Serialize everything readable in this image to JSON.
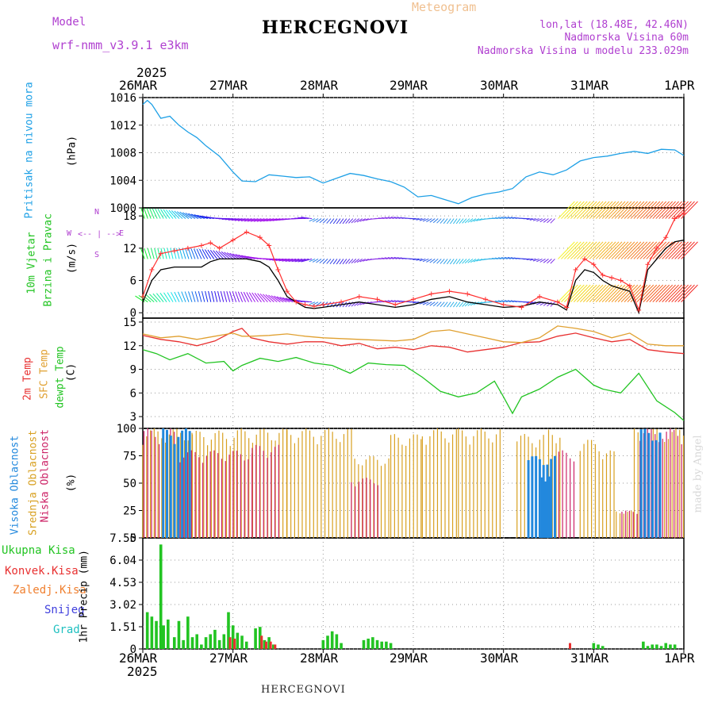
{
  "header": {
    "model_label": "Model",
    "model_name": "wrf-nmm_v3.9.1  e3km",
    "title": "HERCEGNOVI",
    "subtitle": "Meteogram",
    "lonlat": "lon,lat (18.48E, 42.46N)",
    "elevation": "Nadmorska Visina 60m",
    "model_elevation": "Nadmorska Visina u modelu 233.029m",
    "year_top": "2025",
    "year_bottom": "2025",
    "footer_title": "HERCEGNOVI",
    "credit": "made by Angel"
  },
  "colors": {
    "pressure": "#1ea0e6",
    "wind_speed": "#000000",
    "wind_gust": "#ff3030",
    "temp_2m": "#e83030",
    "temp_sfc": "#e0a030",
    "dewpt": "#22c422",
    "cloud_high": "#2288dd",
    "cloud_mid": "#d8a020",
    "cloud_low": "#cc2266",
    "precip_total": "#22c422",
    "precip_conv": "#e83030",
    "frozen": "#f08030",
    "snow": "#4040dd",
    "hail": "#20c0c0",
    "axis_label_purple": "#b040d0"
  },
  "axes": {
    "dates": [
      "26MAR",
      "27MAR",
      "28MAR",
      "29MAR",
      "30MAR",
      "31MAR",
      "1APR"
    ],
    "panel_labels": {
      "pressure": [
        "Pritisak na nivou mora",
        "(hPa)"
      ],
      "wind": [
        "10m Vjetar",
        "Brzina i Pravac",
        "(m/s)"
      ],
      "wind_compass": [
        "N",
        "W",
        "E",
        "S"
      ],
      "temp": [
        "2m Temp",
        "SFC Temp",
        "dewpt Temp",
        "(C)"
      ],
      "cloud": [
        "Visoka Oblacnost",
        "Srednja Oblacnost",
        "Niska Oblacnost",
        "(%)"
      ],
      "precip": [
        "Ukupna Kisa",
        "Konvek.Kisa",
        "Zaledj.Kisa",
        "Snijeg",
        "Grad",
        "1hr Precip (mm)"
      ]
    }
  },
  "chart_data": [
    {
      "type": "line",
      "title": "Pritisak na nivou mora",
      "ylabel": "(hPa)",
      "x_days": [
        0,
        0.05,
        0.1,
        0.2,
        0.3,
        0.4,
        0.5,
        0.6,
        0.7,
        0.85,
        1.0,
        1.1,
        1.25,
        1.4,
        1.55,
        1.7,
        1.85,
        2.0,
        2.15,
        2.3,
        2.45,
        2.6,
        2.75,
        2.9,
        3.05,
        3.2,
        3.35,
        3.5,
        3.65,
        3.8,
        3.95,
        4.1,
        4.25,
        4.4,
        4.55,
        4.7,
        4.85,
        5.0,
        5.15,
        5.3,
        5.45,
        5.6,
        5.75,
        5.9,
        6.0
      ],
      "values": [
        1015.0,
        1015.6,
        1015.0,
        1013.0,
        1013.3,
        1012.0,
        1011.0,
        1010.2,
        1009.0,
        1007.5,
        1005.2,
        1003.9,
        1003.8,
        1004.8,
        1004.6,
        1004.4,
        1004.5,
        1003.6,
        1004.3,
        1005.0,
        1004.7,
        1004.2,
        1003.8,
        1003.0,
        1001.6,
        1001.8,
        1001.2,
        1000.6,
        1001.5,
        1002.0,
        1002.3,
        1002.8,
        1004.5,
        1005.2,
        1004.8,
        1005.5,
        1006.8,
        1007.3,
        1007.5,
        1007.9,
        1008.2,
        1007.9,
        1008.5,
        1008.4,
        1007.6
      ],
      "ylim": [
        1000,
        1016
      ],
      "yticks": [
        1000,
        1004,
        1008,
        1012,
        1016
      ]
    },
    {
      "type": "line",
      "title": "10m Vjetar Brzina i Pravac",
      "ylabel": "(m/s)",
      "series": [
        {
          "name": "speed",
          "x_days": [
            0,
            0.1,
            0.2,
            0.35,
            0.5,
            0.65,
            0.75,
            0.85,
            1.0,
            1.15,
            1.3,
            1.4,
            1.5,
            1.6,
            1.7,
            1.8,
            1.9,
            2.0,
            2.2,
            2.4,
            2.6,
            2.8,
            3.0,
            3.2,
            3.4,
            3.6,
            3.8,
            4.0,
            4.2,
            4.4,
            4.6,
            4.7,
            4.8,
            4.9,
            5.0,
            5.1,
            5.2,
            5.3,
            5.4,
            5.5,
            5.6,
            5.7,
            5.8,
            5.9,
            6.0
          ],
          "values": [
            2,
            6,
            8,
            8.5,
            8.5,
            8.5,
            9.5,
            10,
            10,
            10,
            9.5,
            8.5,
            6,
            3,
            2,
            1,
            0.8,
            1,
            1.5,
            2,
            1.5,
            1,
            1.5,
            2.5,
            3,
            2,
            1.5,
            1,
            1.2,
            2,
            1.5,
            0.5,
            6,
            8,
            7.5,
            6,
            5,
            4.5,
            4,
            0,
            8,
            10,
            12,
            13.2,
            13.5
          ]
        },
        {
          "name": "gust",
          "x_days": [
            0,
            0.1,
            0.2,
            0.35,
            0.5,
            0.65,
            0.75,
            0.85,
            1.0,
            1.15,
            1.3,
            1.4,
            1.5,
            1.6,
            1.7,
            1.8,
            1.9,
            2.0,
            2.2,
            2.4,
            2.6,
            2.8,
            3.0,
            3.2,
            3.4,
            3.6,
            3.8,
            4.0,
            4.2,
            4.4,
            4.6,
            4.7,
            4.8,
            4.9,
            5.0,
            5.1,
            5.2,
            5.3,
            5.4,
            5.5,
            5.6,
            5.7,
            5.8,
            5.9,
            6.0
          ],
          "values": [
            3,
            8,
            11,
            11.5,
            12,
            12.5,
            13,
            12,
            13.5,
            15,
            14,
            12.5,
            8,
            4,
            2,
            1.5,
            1.2,
            1.5,
            2,
            3,
            2.5,
            1.5,
            2.5,
            3.5,
            4,
            3.5,
            2.5,
            1.5,
            1,
            3,
            2,
            1,
            8,
            10,
            9,
            7,
            6.5,
            6,
            5,
            0.5,
            9,
            12,
            14,
            17.5,
            18.5
          ]
        }
      ],
      "ylim": [
        -1,
        19.5
      ],
      "yticks": [
        0,
        6,
        12,
        18
      ]
    },
    {
      "type": "line",
      "title": "2m Temp / SFC Temp / dewpt Temp",
      "ylabel": "(C)",
      "series": [
        {
          "name": "2m Temp",
          "x_days": [
            0,
            0.2,
            0.4,
            0.6,
            0.8,
            1.0,
            1.1,
            1.2,
            1.4,
            1.6,
            1.8,
            2.0,
            2.2,
            2.4,
            2.6,
            2.8,
            3.0,
            3.2,
            3.4,
            3.6,
            3.8,
            4.0,
            4.2,
            4.4,
            4.6,
            4.8,
            5.0,
            5.2,
            5.4,
            5.6,
            5.8,
            6.0
          ],
          "values": [
            13.3,
            12.8,
            12.5,
            12.0,
            12.6,
            13.8,
            14.2,
            13.0,
            12.5,
            12.2,
            12.5,
            12.5,
            12.0,
            12.3,
            11.6,
            11.8,
            11.5,
            12.0,
            11.8,
            11.2,
            11.5,
            11.8,
            12.4,
            12.5,
            13.2,
            13.6,
            13.0,
            12.5,
            12.8,
            11.5,
            11.2,
            11.0
          ]
        },
        {
          "name": "SFC Temp",
          "x_days": [
            0,
            0.2,
            0.4,
            0.6,
            0.8,
            1.0,
            1.1,
            1.2,
            1.4,
            1.6,
            1.8,
            2.0,
            2.2,
            2.4,
            2.6,
            2.8,
            3.0,
            3.2,
            3.4,
            3.6,
            3.8,
            4.0,
            4.2,
            4.4,
            4.6,
            4.8,
            5.0,
            5.2,
            5.4,
            5.6,
            5.8,
            6.0
          ],
          "values": [
            13.5,
            13.0,
            13.2,
            12.8,
            13.2,
            13.6,
            13.2,
            13.2,
            13.3,
            13.5,
            13.2,
            13.0,
            12.9,
            12.8,
            12.7,
            12.6,
            12.8,
            13.8,
            14.0,
            13.5,
            13.0,
            12.5,
            12.4,
            13.0,
            14.5,
            14.2,
            13.8,
            13.0,
            13.6,
            12.2,
            12.0,
            12.0
          ]
        },
        {
          "name": "dewpt Temp",
          "x_days": [
            0,
            0.15,
            0.3,
            0.5,
            0.7,
            0.9,
            1.0,
            1.1,
            1.3,
            1.5,
            1.7,
            1.9,
            2.1,
            2.3,
            2.5,
            2.7,
            2.9,
            3.1,
            3.3,
            3.5,
            3.7,
            3.9,
            4.0,
            4.1,
            4.2,
            4.4,
            4.6,
            4.8,
            5.0,
            5.1,
            5.3,
            5.5,
            5.7,
            5.9,
            6.0
          ],
          "values": [
            11.5,
            11.0,
            10.2,
            11.0,
            9.8,
            10.0,
            8.8,
            9.5,
            10.4,
            10.0,
            10.5,
            9.8,
            9.5,
            8.5,
            9.8,
            9.6,
            9.5,
            8.0,
            6.2,
            5.5,
            6.0,
            7.5,
            5.5,
            3.4,
            5.5,
            6.5,
            8.0,
            9.0,
            7.0,
            6.5,
            6.0,
            8.5,
            5.0,
            3.5,
            2.5
          ]
        }
      ],
      "ylim": [
        1.5,
        15.5
      ],
      "yticks": [
        3,
        6,
        9,
        12,
        15
      ]
    },
    {
      "type": "bar",
      "title": "Visoka / Srednja / Niska Oblacnost",
      "ylabel": "(%)",
      "ylim": [
        0,
        100
      ],
      "yticks": [
        0,
        25,
        50,
        75,
        100
      ],
      "series": [
        {
          "name": "Srednja Oblacnost",
          "segments_days": [
            [
              0,
              0.55,
              100
            ],
            [
              0.55,
              1.05,
              98
            ],
            [
              1.05,
              1.6,
              100
            ],
            [
              1.6,
              2.35,
              100
            ],
            [
              2.35,
              2.75,
              75
            ],
            [
              2.75,
              3.1,
              95
            ],
            [
              3.1,
              3.5,
              100
            ],
            [
              3.5,
              4.0,
              100
            ],
            [
              4.15,
              4.45,
              95
            ],
            [
              4.5,
              4.65,
              100
            ],
            [
              4.85,
              5.1,
              90
            ],
            [
              5.1,
              5.25,
              80
            ],
            [
              5.25,
              5.45,
              25
            ],
            [
              5.45,
              6.0,
              100
            ]
          ]
        },
        {
          "name": "Niska Oblacnost",
          "segments_days": [
            [
              0.0,
              0.4,
              100
            ],
            [
              0.4,
              1.2,
              80
            ],
            [
              1.2,
              1.5,
              85
            ],
            [
              2.3,
              2.6,
              55
            ],
            [
              4.6,
              4.8,
              80
            ],
            [
              5.3,
              5.5,
              25
            ],
            [
              5.5,
              6.0,
              100
            ]
          ]
        },
        {
          "name": "Visoka Oblacnost",
          "segments_days": [
            [
              0.2,
              0.5,
              100
            ],
            [
              4.25,
              4.55,
              75
            ],
            [
              4.4,
              4.5,
              60
            ],
            [
              5.5,
              5.75,
              100
            ]
          ]
        }
      ]
    },
    {
      "type": "bar",
      "title": "1hr Precip",
      "ylabel": "1hr Precip (mm)",
      "ylim": [
        0,
        7.55
      ],
      "yticks": [
        0,
        1.51,
        3.02,
        4.53,
        6.04,
        7.55
      ],
      "series": [
        {
          "name": "Ukupna Kisa",
          "x_days": [
            0.05,
            0.1,
            0.15,
            0.2,
            0.23,
            0.28,
            0.35,
            0.4,
            0.45,
            0.5,
            0.55,
            0.6,
            0.65,
            0.7,
            0.75,
            0.8,
            0.85,
            0.9,
            0.95,
            1.0,
            1.05,
            1.1,
            1.15,
            1.25,
            1.3,
            1.35,
            1.4,
            1.45,
            2.0,
            2.05,
            2.1,
            2.15,
            2.2,
            2.45,
            2.5,
            2.55,
            2.6,
            2.65,
            2.7,
            2.75,
            5.0,
            5.05,
            5.1,
            5.55,
            5.6,
            5.65,
            5.7,
            5.75,
            5.8,
            5.85,
            5.9
          ],
          "values": [
            2.5,
            2.2,
            1.9,
            7.1,
            1.6,
            2.0,
            0.8,
            1.9,
            0.6,
            2.2,
            0.8,
            1.0,
            0.3,
            0.8,
            1.0,
            1.3,
            0.6,
            1.0,
            2.5,
            1.6,
            1.1,
            0.9,
            0.5,
            1.4,
            1.5,
            0.6,
            0.8,
            0.3,
            0.6,
            0.9,
            1.2,
            1.0,
            0.4,
            0.6,
            0.7,
            0.8,
            0.6,
            0.5,
            0.5,
            0.4,
            0.4,
            0.3,
            0.2,
            0.5,
            0.2,
            0.3,
            0.3,
            0.2,
            0.4,
            0.3,
            0.3
          ]
        },
        {
          "name": "Konvek.Kisa",
          "x_days": [
            0.95,
            1.0,
            1.3,
            1.35,
            1.4,
            1.45,
            4.72
          ],
          "values": [
            0.8,
            0.7,
            0.9,
            0.5,
            0.5,
            0.3,
            0.4
          ]
        }
      ]
    }
  ]
}
